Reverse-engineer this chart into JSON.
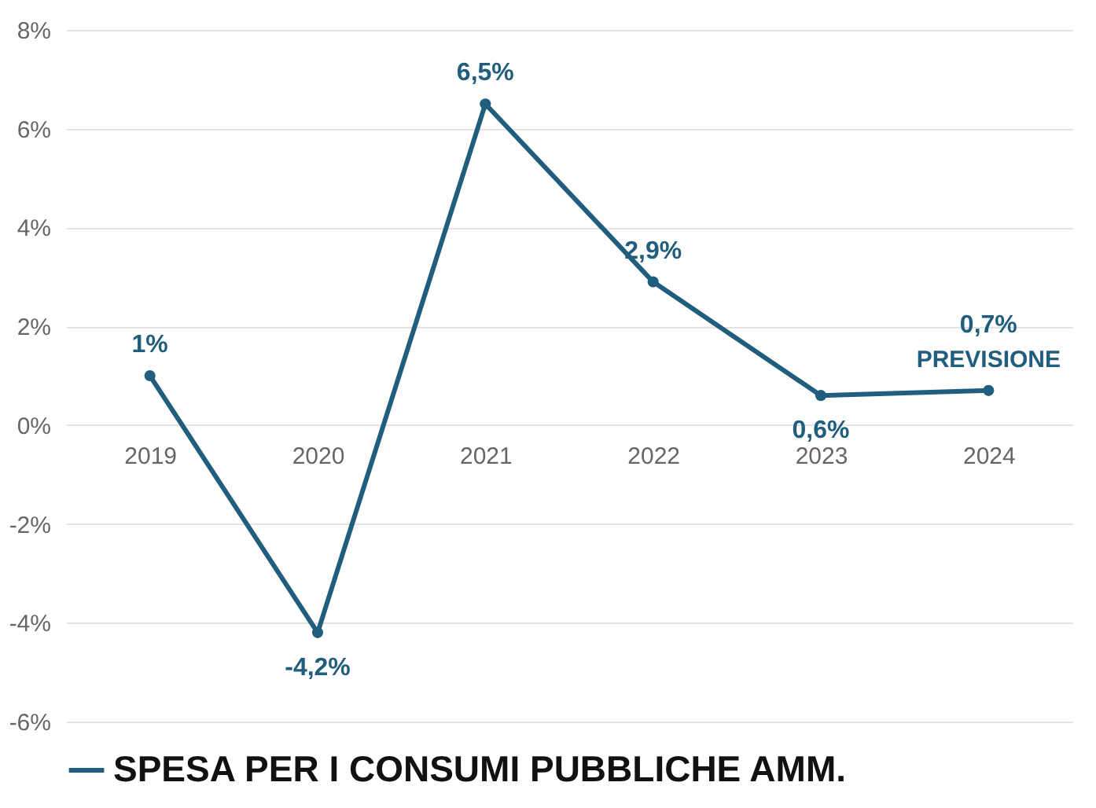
{
  "chart_data": {
    "type": "line",
    "categories": [
      "2019",
      "2020",
      "2021",
      "2022",
      "2023",
      "2024"
    ],
    "series": [
      {
        "name": "SPESA PER I CONSUMI PUBBLICHE AMM.",
        "color": "#215e7e",
        "values": [
          1,
          -4.2,
          6.5,
          2.9,
          0.6,
          0.7
        ],
        "value_labels": [
          "1%",
          "-4,2%",
          "6,5%",
          "2,9%",
          "0,6%",
          "0,7%"
        ]
      }
    ],
    "ylim": [
      -6,
      8
    ],
    "yticks": [
      {
        "value": -6,
        "label": "-6%"
      },
      {
        "value": -4,
        "label": "-4%"
      },
      {
        "value": -2,
        "label": "-2%"
      },
      {
        "value": 0,
        "label": "0%"
      },
      {
        "value": 2,
        "label": "2%"
      },
      {
        "value": 4,
        "label": "4%"
      },
      {
        "value": 6,
        "label": "6%"
      },
      {
        "value": 8,
        "label": "8%"
      }
    ],
    "grid": "y",
    "legend": "bottom",
    "marker": "circle",
    "line_style": "solid",
    "annotations": [
      {
        "text": "PREVISIONE",
        "x": "2024",
        "y": 0.7
      }
    ]
  }
}
